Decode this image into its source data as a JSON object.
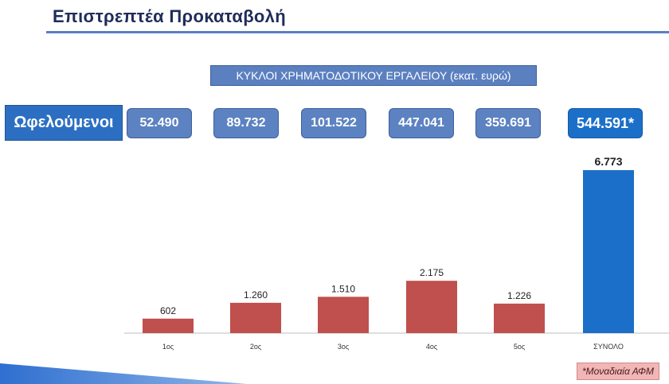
{
  "title": "Επιστρεπτέα Προκαταβολή",
  "cycles_header": "ΚΥΚΛΟΙ ΧΡΗΜΑΤΟΔΟΤΙΚΟΥ ΕΡΓΑΛΕΙΟΥ (εκατ. ευρώ)",
  "beneficiaries_label": "Ωφελούμενοι",
  "beneficiaries_values": [
    "52.490",
    "89.732",
    "101.522",
    "447.041",
    "359.691"
  ],
  "beneficiaries_total": "544.591*",
  "note": "*Μοναδιαία ΑΦΜ",
  "colors": {
    "cycle_bar": "#c0504d",
    "total_bar": "#1b6fc8",
    "title": "#1f2d5a"
  },
  "chart_data": {
    "type": "bar",
    "categories": [
      "1ος",
      "2ος",
      "3ος",
      "4ος",
      "5ος",
      "ΣΥΝΟΛΟ"
    ],
    "values": [
      602,
      1260,
      1510,
      2175,
      1226,
      6773
    ],
    "value_labels": [
      "602",
      "1.260",
      "1.510",
      "2.175",
      "1.226",
      "6.773"
    ],
    "ylim": [
      0,
      7500
    ],
    "grid": false,
    "title": "",
    "xlabel": "",
    "ylabel": ""
  }
}
